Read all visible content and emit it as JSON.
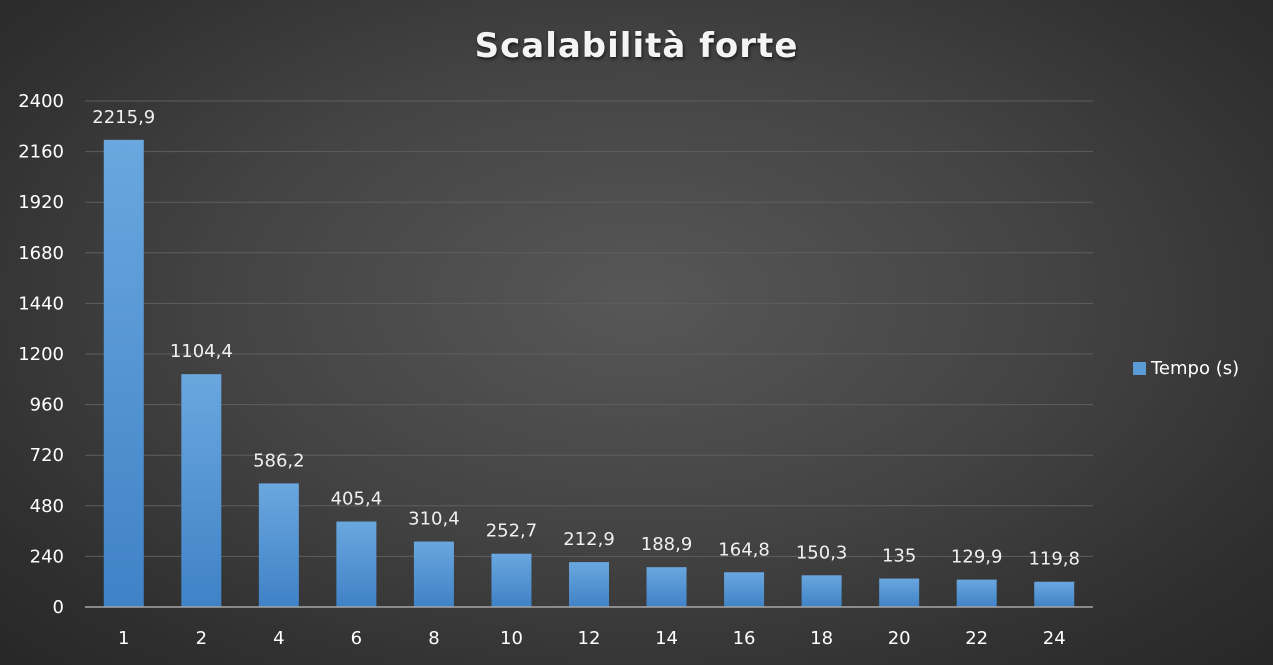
{
  "chart_data": {
    "type": "bar",
    "title": "Scalabilità forte",
    "xlabel": "",
    "ylabel": "",
    "categories": [
      "1",
      "2",
      "4",
      "6",
      "8",
      "10",
      "12",
      "14",
      "16",
      "18",
      "20",
      "22",
      "24"
    ],
    "series": [
      {
        "name": "Tempo (s)",
        "values": [
          2215.9,
          1104.4,
          586.2,
          405.4,
          310.4,
          252.7,
          212.9,
          188.9,
          164.8,
          150.3,
          135,
          129.9,
          119.8
        ],
        "labels": [
          "2215,9",
          "1104,4",
          "586,2",
          "405,4",
          "310,4",
          "252,7",
          "212,9",
          "188,9",
          "164,8",
          "150,3",
          "135",
          "129,9",
          "119,8"
        ],
        "color": "#5b9bd5"
      }
    ],
    "ylim": [
      0,
      2400
    ],
    "yticks": [
      0,
      240,
      480,
      720,
      960,
      1200,
      1440,
      1680,
      1920,
      2160,
      2400
    ],
    "grid": true,
    "legend_position": "right"
  },
  "colors": {
    "bar_top": "#6aa7df",
    "bar_bottom": "#3f82c6",
    "gridline": "#5e5e5e",
    "axis": "#a6a6a6"
  }
}
